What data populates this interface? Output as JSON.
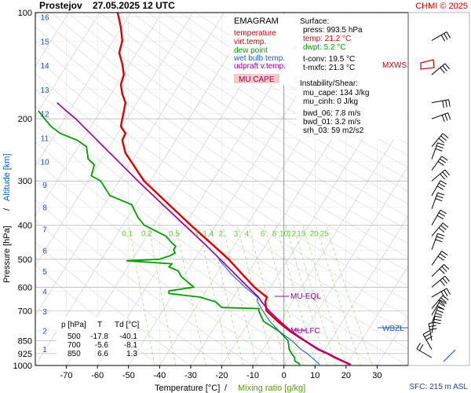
{
  "header": {
    "station": "Prostejov",
    "datetime": "27.05.2025 12 UTC",
    "credit": "CHMI © 2025"
  },
  "legend": {
    "title": "EMAGRAM",
    "items": [
      {
        "label": "temperature",
        "color": "#e00000"
      },
      {
        "label": "virt.temp.",
        "color": "#e00000"
      },
      {
        "label": "dew point",
        "color": "#00a000"
      },
      {
        "label": "wet bulb temp.",
        "color": "#2060d0"
      },
      {
        "label": "udpraft v.temp.",
        "color": "#a000a0"
      }
    ],
    "mu_cape_label": "MU CAPE"
  },
  "info": {
    "surface_title": "Surface:",
    "press": "press: 993.5 hPa",
    "temp": "temp: 21.2 °C",
    "dwpt": "dwpt: 5.2 °C",
    "tconv": "t-conv: 19.5 °C",
    "tmxfc": "t-mxfc: 21.3 °C",
    "instab_title": "Instability/Shear:",
    "mu_cape": "mu_cape: 134 J/kg",
    "mu_cinh": "mu_cinh: 0 J/kg",
    "bwd06": "bwd_06: 7.8 m/s",
    "bwd01": "bwd_01: 3.2 m/s",
    "srh03": "srh_03: 59 m2/s2"
  },
  "levels_table": {
    "headers": [
      "p [hPa]",
      "T",
      "Td [°C]"
    ],
    "rows": [
      [
        "500",
        "-17.8",
        "-40.1"
      ],
      [
        "700",
        "-5.6",
        "-8.1"
      ],
      [
        "850",
        "6.6",
        "1.3"
      ]
    ]
  },
  "annotations": {
    "mxws": "MXWS",
    "mu_eql": "MU-EQL",
    "mu_lfc": "MU-LFC",
    "wbzl": "WBZL",
    "sfc": "SFC: 215 m ASL"
  },
  "chart_data": {
    "type": "line",
    "title": "Prostejov 27.05.2025 12 UTC",
    "xlabel": "Temperature [°C]",
    "xlabel2": "Mixing ratio [g/kg]",
    "ylabel": "Pressure [hPa]",
    "ylabel2": "Altitude [km]",
    "xlim": [
      -80,
      40
    ],
    "ylim": [
      1000,
      100
    ],
    "y_scale": "log",
    "grid": true,
    "x_ticks": [
      "-70",
      "-60",
      "-50",
      "-40",
      "-30",
      "-20",
      "-10",
      "0",
      "10",
      "20",
      "30"
    ],
    "p_ticks": [
      "100",
      "200",
      "300",
      "400",
      "500",
      "600",
      "700",
      "850",
      "925",
      "1000"
    ],
    "alt_ticks": [
      "1",
      "2",
      "3",
      "4",
      "5",
      "6",
      "7",
      "8",
      "9",
      "10",
      "11",
      "12",
      "13",
      "14",
      "15",
      "16"
    ],
    "mixing_ratio_labels": [
      "0.1",
      "0.2",
      "0.5",
      "1",
      "1.4",
      "2",
      "3",
      "4",
      "6",
      "8",
      "10",
      "12",
      "15",
      "20",
      "25"
    ],
    "series": [
      {
        "name": "temperature",
        "color": "#e00000",
        "points": [
          [
            993.5,
            21.2
          ],
          [
            950,
            16.5
          ],
          [
            925,
            14
          ],
          [
            900,
            11
          ],
          [
            850,
            6.6
          ],
          [
            800,
            2
          ],
          [
            750,
            -2
          ],
          [
            700,
            -5.6
          ],
          [
            660,
            -6
          ],
          [
            640,
            -5.5
          ],
          [
            620,
            -7.5
          ],
          [
            600,
            -9.5
          ],
          [
            550,
            -13.5
          ],
          [
            500,
            -17.8
          ],
          [
            450,
            -23.5
          ],
          [
            400,
            -30
          ],
          [
            350,
            -37
          ],
          [
            300,
            -45
          ],
          [
            250,
            -51
          ],
          [
            230,
            -52
          ],
          [
            220,
            -51
          ],
          [
            210,
            -52.5
          ],
          [
            200,
            -52
          ],
          [
            190,
            -51.5
          ],
          [
            180,
            -51
          ],
          [
            170,
            -52
          ],
          [
            160,
            -52.5
          ],
          [
            150,
            -51.5
          ],
          [
            140,
            -52
          ],
          [
            130,
            -53
          ],
          [
            120,
            -52
          ],
          [
            110,
            -52.5
          ],
          [
            100,
            -53.5
          ]
        ]
      },
      {
        "name": "dew point",
        "color": "#00a000",
        "points": [
          [
            993.5,
            5.2
          ],
          [
            970,
            3.5
          ],
          [
            950,
            3.5
          ],
          [
            925,
            2.5
          ],
          [
            900,
            1.7
          ],
          [
            870,
            1.5
          ],
          [
            850,
            1.3
          ],
          [
            800,
            -1.5
          ],
          [
            750,
            -6.5
          ],
          [
            720,
            -7.5
          ],
          [
            700,
            -8.1
          ],
          [
            690,
            -8
          ],
          [
            685,
            -20
          ],
          [
            660,
            -22
          ],
          [
            640,
            -27
          ],
          [
            625,
            -37
          ],
          [
            615,
            -37
          ],
          [
            600,
            -29
          ],
          [
            590,
            -30
          ],
          [
            560,
            -33
          ],
          [
            540,
            -34
          ],
          [
            525,
            -37
          ],
          [
            515,
            -36
          ],
          [
            505,
            -50.5
          ],
          [
            500,
            -40.1
          ],
          [
            490,
            -37
          ],
          [
            480,
            -35
          ],
          [
            470,
            -35.5
          ],
          [
            460,
            -34.8
          ],
          [
            450,
            -36
          ],
          [
            430,
            -38
          ],
          [
            400,
            -45
          ],
          [
            380,
            -47
          ],
          [
            350,
            -49
          ],
          [
            330,
            -56
          ],
          [
            300,
            -59
          ],
          [
            290,
            -62
          ],
          [
            270,
            -61
          ],
          [
            260,
            -63
          ],
          [
            240,
            -63.5
          ],
          [
            230,
            -66.5
          ],
          [
            220,
            -72
          ],
          [
            210,
            -75
          ],
          [
            200,
            -77
          ],
          [
            190,
            -79
          ]
        ]
      },
      {
        "name": "wet bulb temp.",
        "color": "#2060d0",
        "points": [
          [
            993.5,
            11.5
          ],
          [
            950,
            9
          ],
          [
            925,
            7.5
          ],
          [
            900,
            5.5
          ],
          [
            850,
            2.5
          ],
          [
            800,
            -1.5
          ],
          [
            750,
            -4.5
          ],
          [
            700,
            -6.8
          ],
          [
            660,
            -8.5
          ],
          [
            640,
            -8.5
          ],
          [
            600,
            -12.5
          ],
          [
            550,
            -17
          ],
          [
            500,
            -21
          ]
        ]
      },
      {
        "name": "udpraft v.temp.",
        "color": "#a000a0",
        "points": [
          [
            993.5,
            21.5
          ],
          [
            950,
            16.8
          ],
          [
            925,
            14.2
          ],
          [
            900,
            11.3
          ],
          [
            850,
            6.8
          ],
          [
            800,
            2.4
          ],
          [
            750,
            -1.2
          ],
          [
            700,
            -4.8
          ],
          [
            660,
            -7.2
          ],
          [
            640,
            -8.2
          ],
          [
            620,
            -9.8
          ],
          [
            600,
            -11.5
          ],
          [
            550,
            -15.8
          ],
          [
            500,
            -20.5
          ],
          [
            450,
            -25.8
          ],
          [
            400,
            -32
          ],
          [
            350,
            -39
          ],
          [
            300,
            -47
          ],
          [
            250,
            -56
          ],
          [
            200,
            -67
          ],
          [
            190,
            -70
          ],
          [
            180,
            -73
          ]
        ]
      }
    ]
  }
}
